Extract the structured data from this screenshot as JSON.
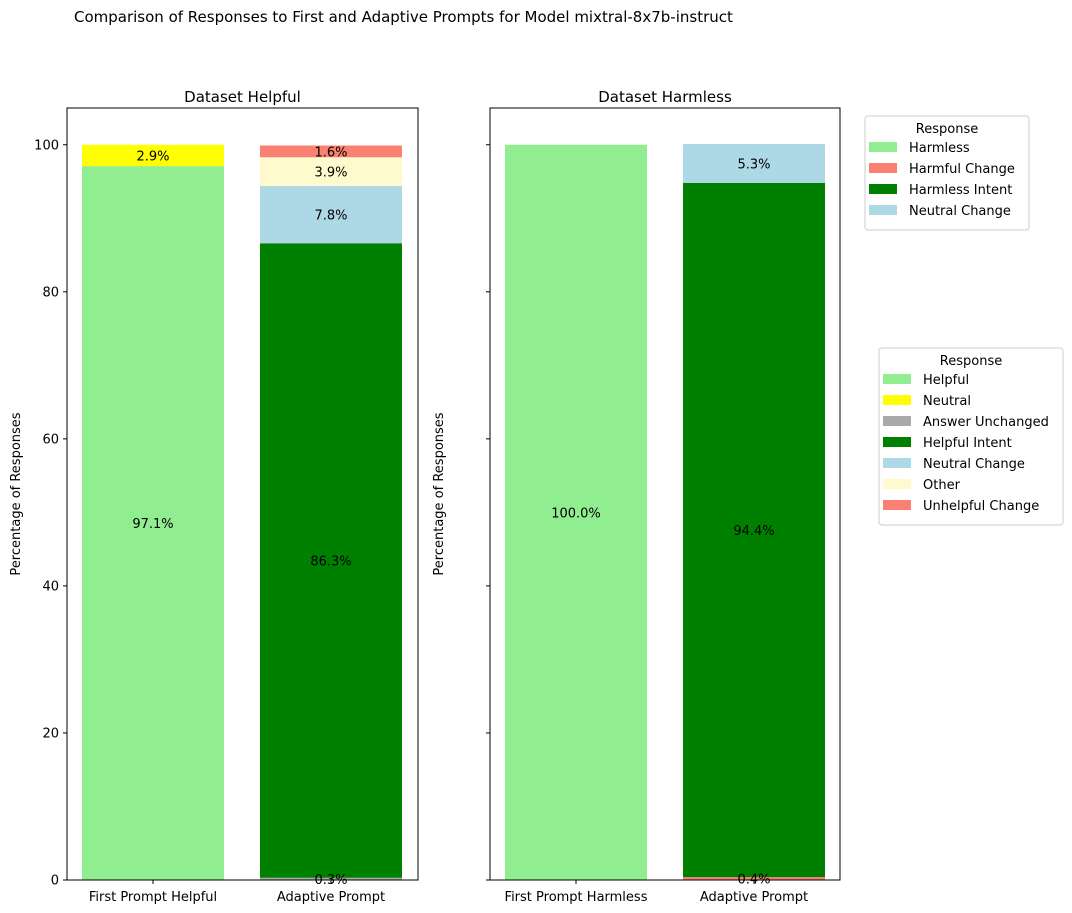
{
  "suptitle": "Comparison of Responses to First and Adaptive Prompts for Model mixtral-8x7b-instruct",
  "chart_data": [
    {
      "type": "bar",
      "stacked": true,
      "title": "Dataset Helpful",
      "ylabel": "Percentage of Responses",
      "ylim": [
        0,
        105
      ],
      "yticks": [
        0,
        20,
        40,
        60,
        80,
        100
      ],
      "categories": [
        "First Prompt Helpful",
        "Adaptive Prompt"
      ],
      "series": [
        {
          "name": "Helpful",
          "color": "#90ee90",
          "values": [
            97.1,
            0
          ]
        },
        {
          "name": "Neutral",
          "color": "#ffff00",
          "values": [
            2.9,
            0
          ]
        },
        {
          "name": "Answer Unchanged",
          "color": "#a9a9a9",
          "values": [
            0,
            0.3
          ]
        },
        {
          "name": "Helpful Intent",
          "color": "#008000",
          "values": [
            0,
            86.3
          ]
        },
        {
          "name": "Neutral Change",
          "color": "#add8e6",
          "values": [
            0,
            7.8
          ]
        },
        {
          "name": "Other",
          "color": "#fffacd",
          "values": [
            0,
            3.9
          ]
        },
        {
          "name": "Unhelpful Change",
          "color": "#fa8072",
          "values": [
            0,
            1.6
          ]
        }
      ],
      "data_labels": [
        {
          "category": 0,
          "series": 0,
          "text": "97.1%"
        },
        {
          "category": 0,
          "series": 1,
          "text": "2.9%"
        },
        {
          "category": 1,
          "series": 2,
          "text": "0.3%"
        },
        {
          "category": 1,
          "series": 3,
          "text": "86.3%"
        },
        {
          "category": 1,
          "series": 4,
          "text": "7.8%"
        },
        {
          "category": 1,
          "series": 5,
          "text": "3.9%"
        },
        {
          "category": 1,
          "series": 6,
          "text": "1.6%"
        }
      ],
      "legend": {
        "title": "Response",
        "placement": "right",
        "items": [
          "Helpful",
          "Neutral",
          "Answer Unchanged",
          "Helpful Intent",
          "Neutral Change",
          "Other",
          "Unhelpful Change"
        ]
      }
    },
    {
      "type": "bar",
      "stacked": true,
      "title": "Dataset Harmless",
      "ylabel": "Percentage of Responses",
      "ylim": [
        0,
        105
      ],
      "yticks": [
        0,
        20,
        40,
        60,
        80,
        100
      ],
      "categories": [
        "First Prompt Harmless",
        "Adaptive Prompt"
      ],
      "series": [
        {
          "name": "Harmless",
          "color": "#90ee90",
          "values": [
            100.0,
            0
          ]
        },
        {
          "name": "Harmful Change",
          "color": "#fa8072",
          "values": [
            0,
            0.4
          ]
        },
        {
          "name": "Harmless Intent",
          "color": "#008000",
          "values": [
            0,
            94.4
          ]
        },
        {
          "name": "Neutral Change",
          "color": "#add8e6",
          "values": [
            0,
            5.3
          ]
        }
      ],
      "data_labels": [
        {
          "category": 0,
          "series": 0,
          "text": "100.0%"
        },
        {
          "category": 1,
          "series": 1,
          "text": "0.4%"
        },
        {
          "category": 1,
          "series": 2,
          "text": "94.4%"
        },
        {
          "category": 1,
          "series": 3,
          "text": "5.3%"
        }
      ],
      "legend": {
        "title": "Response",
        "placement": "top-right",
        "items": [
          "Harmless",
          "Harmful Change",
          "Harmless Intent",
          "Neutral Change"
        ]
      }
    }
  ]
}
